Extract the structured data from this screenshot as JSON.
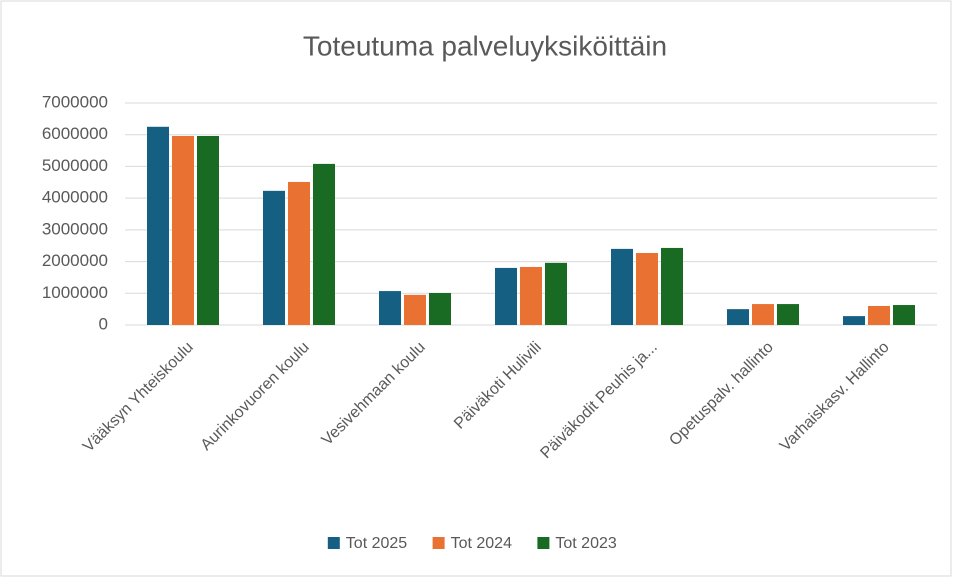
{
  "chart_data": {
    "type": "bar",
    "title": "Toteutuma palveluyksiköittäin",
    "categories": [
      "Vääksyn Yhteiskoulu",
      "Aurinkovuoren koulu",
      "Vesivehmaan koulu",
      "Päiväkoti Hulivili",
      "Päiväkodit Peuhis ja...",
      "Opetuspalv. hallinto",
      "Varhaiskasv. Hallinto"
    ],
    "series": [
      {
        "name": "Tot 2025",
        "color": "#156082",
        "values": [
          6250000,
          4230000,
          1070000,
          1800000,
          2400000,
          500000,
          280000
        ]
      },
      {
        "name": "Tot 2024",
        "color": "#e97132",
        "values": [
          5960000,
          4510000,
          950000,
          1830000,
          2270000,
          660000,
          600000
        ]
      },
      {
        "name": "Tot 2023",
        "color": "#196b24",
        "values": [
          5960000,
          5080000,
          1010000,
          1960000,
          2430000,
          660000,
          630000
        ]
      }
    ],
    "ylim": [
      0,
      7000000
    ],
    "yticks": [
      0,
      1000000,
      2000000,
      3000000,
      4000000,
      5000000,
      6000000,
      7000000
    ],
    "grid": true,
    "legend": "bottom"
  }
}
